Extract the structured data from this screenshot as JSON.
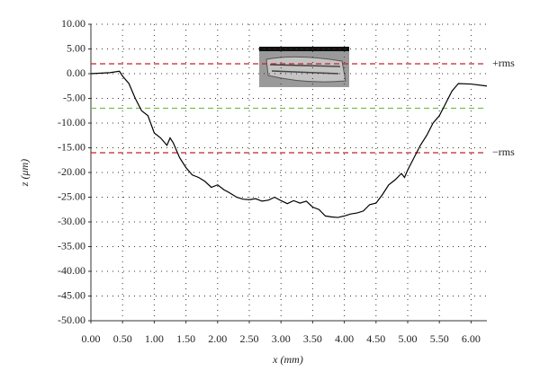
{
  "chart_data": {
    "type": "line",
    "xlabel": "x (mm)",
    "ylabel": "z (μm)",
    "x": [
      0,
      0.3,
      0.45,
      0.5,
      0.6,
      0.7,
      0.8,
      0.9,
      1.0,
      1.1,
      1.2,
      1.25,
      1.3,
      1.4,
      1.5,
      1.6,
      1.7,
      1.8,
      1.9,
      2.0,
      2.1,
      2.2,
      2.3,
      2.4,
      2.5,
      2.6,
      2.7,
      2.8,
      2.9,
      3.0,
      3.1,
      3.2,
      3.3,
      3.4,
      3.5,
      3.6,
      3.7,
      3.8,
      3.9,
      4.0,
      4.1,
      4.2,
      4.3,
      4.4,
      4.5,
      4.6,
      4.7,
      4.8,
      4.9,
      4.95,
      5.0,
      5.1,
      5.2,
      5.3,
      5.4,
      5.5,
      5.6,
      5.7,
      5.8,
      6.0,
      6.25
    ],
    "values": [
      0,
      0.2,
      0.5,
      -0.5,
      -2,
      -5,
      -7.5,
      -8.5,
      -12,
      -13,
      -14.5,
      -13,
      -14,
      -17,
      -19,
      -20.5,
      -21,
      -21.8,
      -23,
      -22.5,
      -23.5,
      -24.2,
      -25,
      -25.4,
      -25.5,
      -25.3,
      -25.8,
      -25.6,
      -25,
      -25.7,
      -26.3,
      -25.7,
      -26.2,
      -25.8,
      -27,
      -27.5,
      -28.8,
      -29,
      -29.1,
      -28.8,
      -28.4,
      -28.2,
      -27.8,
      -26.5,
      -26.2,
      -24.5,
      -22.5,
      -21.5,
      -20.2,
      -21,
      -19.5,
      -17,
      -14.5,
      -12.5,
      -10,
      -8.5,
      -6,
      -3.5,
      -2,
      -2.1,
      -2.5
    ],
    "color": "#000000",
    "xlim": [
      0,
      6.25
    ],
    "ylim": [
      -50,
      10
    ],
    "xticks": [
      {
        "value": 0,
        "label": "0.00"
      },
      {
        "value": 0.5,
        "label": "0.50"
      },
      {
        "value": 1,
        "label": "1.00"
      },
      {
        "value": 1.5,
        "label": "1.50"
      },
      {
        "value": 2,
        "label": "2.00"
      },
      {
        "value": 2.5,
        "label": "2.50"
      },
      {
        "value": 3,
        "label": "3.00"
      },
      {
        "value": 3.5,
        "label": "3.50"
      },
      {
        "value": 4,
        "label": "4.00"
      },
      {
        "value": 4.5,
        "label": "4.50"
      },
      {
        "value": 5,
        "label": "5.00"
      },
      {
        "value": 5.5,
        "label": "5.50"
      },
      {
        "value": 6,
        "label": "6.00"
      }
    ],
    "yticks": [
      {
        "value": 10,
        "label": "10.00"
      },
      {
        "value": 5,
        "label": "5.00"
      },
      {
        "value": 0,
        "label": "0.00"
      },
      {
        "value": -5,
        "label": "-5.00"
      },
      {
        "value": -10,
        "label": "-10.00"
      },
      {
        "value": -15,
        "label": "-15.00"
      },
      {
        "value": -20,
        "label": "-20.00"
      },
      {
        "value": -25,
        "label": "-25.00"
      },
      {
        "value": -30,
        "label": "-30.00"
      },
      {
        "value": -35,
        "label": "-35.00"
      },
      {
        "value": -40,
        "label": "-40.00"
      },
      {
        "value": -45,
        "label": "-45.00"
      },
      {
        "value": -50,
        "label": "-50.00"
      }
    ],
    "grid": true,
    "reference_lines": [
      {
        "value": 2,
        "label": "+rms",
        "color": "#c8202a"
      },
      {
        "value": -7,
        "color": "#6fbf4a"
      },
      {
        "value": -16,
        "label": "−rms",
        "color": "#c8202a"
      }
    ]
  }
}
